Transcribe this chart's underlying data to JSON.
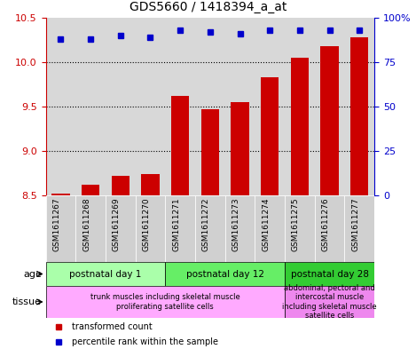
{
  "title": "GDS5660 / 1418394_a_at",
  "samples": [
    "GSM1611267",
    "GSM1611268",
    "GSM1611269",
    "GSM1611270",
    "GSM1611271",
    "GSM1611272",
    "GSM1611273",
    "GSM1611274",
    "GSM1611275",
    "GSM1611276",
    "GSM1611277"
  ],
  "transformed_count": [
    8.52,
    8.62,
    8.72,
    8.74,
    9.62,
    9.47,
    9.55,
    9.83,
    10.05,
    10.18,
    10.28
  ],
  "percentile_rank": [
    88,
    88,
    90,
    89,
    93,
    92,
    91,
    93,
    93,
    93,
    93
  ],
  "ylim_left": [
    8.5,
    10.5
  ],
  "ylim_right": [
    0,
    100
  ],
  "yticks_left": [
    8.5,
    9.0,
    9.5,
    10.0,
    10.5
  ],
  "yticks_right": [
    0,
    25,
    50,
    75,
    100
  ],
  "bar_color": "#cc0000",
  "dot_color": "#0000cc",
  "bar_bottom": 8.5,
  "age_groups": [
    {
      "label": "postnatal day 1",
      "start": 0,
      "end": 4,
      "color": "#aaffaa"
    },
    {
      "label": "postnatal day 12",
      "start": 4,
      "end": 8,
      "color": "#66ee66"
    },
    {
      "label": "postnatal day 28",
      "start": 8,
      "end": 11,
      "color": "#33cc33"
    }
  ],
  "tissue_groups": [
    {
      "label": "trunk muscles including skeletal muscle\nproliferating satellite cells",
      "start": 0,
      "end": 8,
      "color": "#ffaaff"
    },
    {
      "label": "abdominal, pectoral and\nintercostal muscle\nincluding skeletal muscle\nsatellite cells",
      "start": 8,
      "end": 11,
      "color": "#ee88ee"
    }
  ],
  "legend_items": [
    {
      "label": "transformed count",
      "color": "#cc0000"
    },
    {
      "label": "percentile rank within the sample",
      "color": "#0000cc"
    }
  ],
  "plot_bg_color": "#d8d8d8",
  "grid_color": "#000000"
}
